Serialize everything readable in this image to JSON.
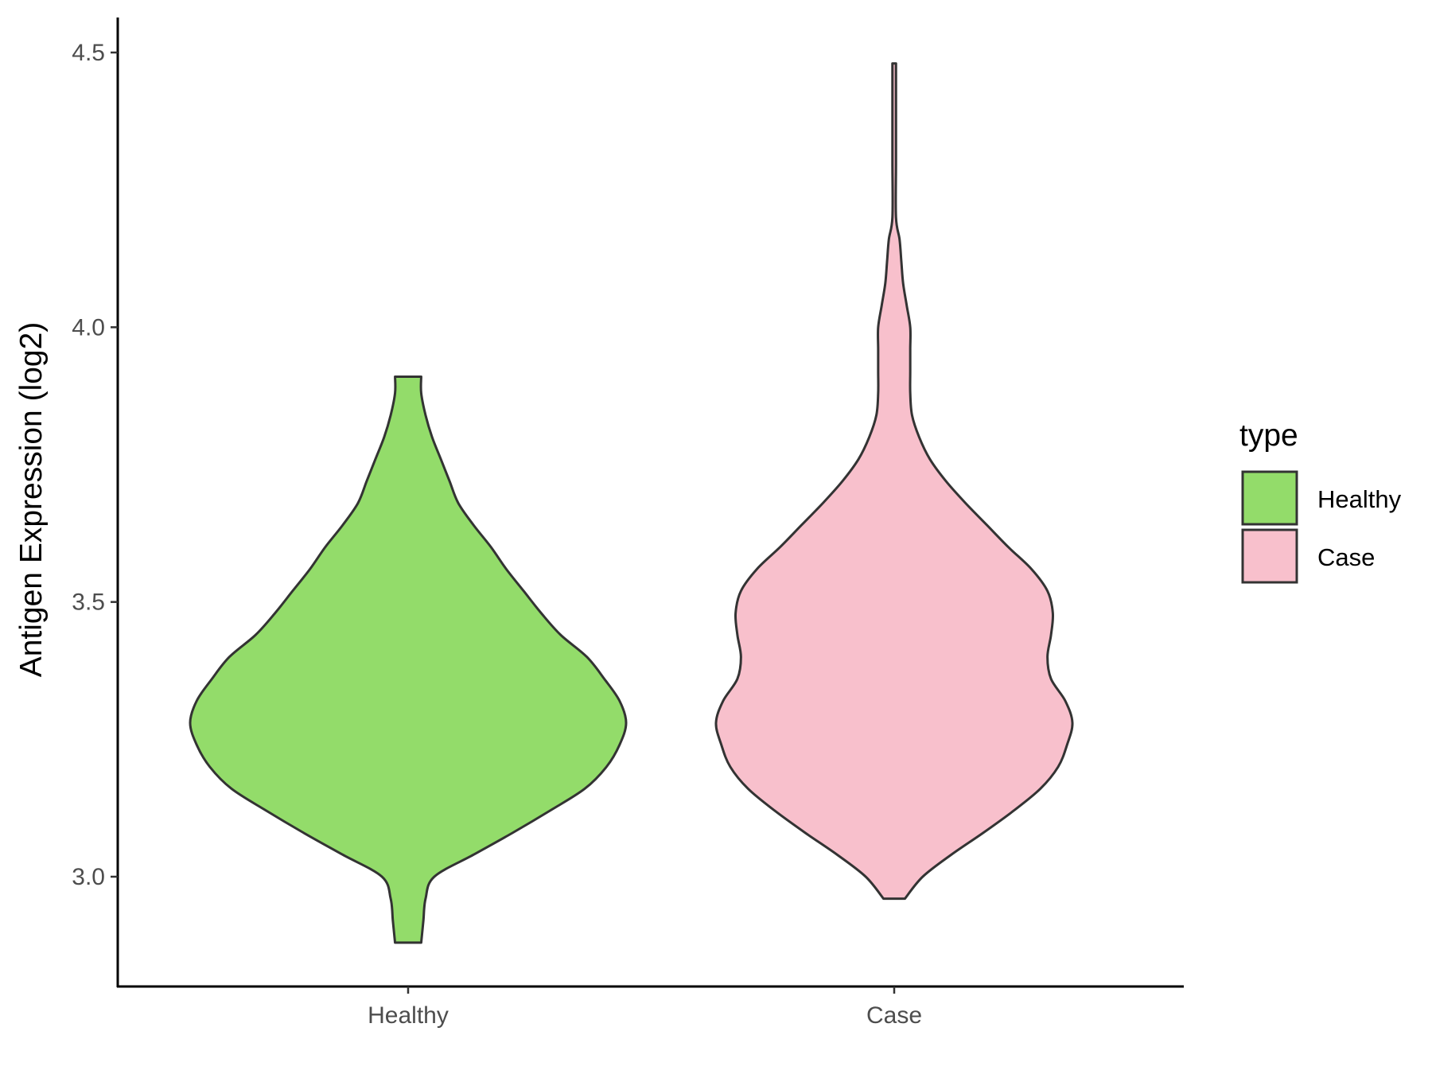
{
  "chart_data": {
    "type": "violin",
    "categories": [
      "Healthy",
      "Case"
    ],
    "xlabel": "",
    "ylabel": "Antigen Expression (log2)",
    "ylim": [
      2.8,
      4.56
    ],
    "yticks": [
      3.0,
      3.5,
      4.0,
      4.5
    ],
    "ytick_labels": [
      "3.0",
      "3.5",
      "4.0",
      "4.5"
    ],
    "grid": false,
    "legend": {
      "title": "type",
      "position": "right",
      "entries": [
        {
          "label": "Healthy",
          "color": "#93dc6a"
        },
        {
          "label": "Case",
          "color": "#f8c0cc"
        }
      ]
    },
    "series": [
      {
        "category": "Healthy",
        "color": "#93dc6a",
        "min": 2.88,
        "max": 3.91,
        "density_profile": [
          [
            2.88,
            0.06
          ],
          [
            2.92,
            0.07
          ],
          [
            2.96,
            0.08
          ],
          [
            3.0,
            0.12
          ],
          [
            3.04,
            0.3
          ],
          [
            3.08,
            0.48
          ],
          [
            3.12,
            0.65
          ],
          [
            3.16,
            0.81
          ],
          [
            3.2,
            0.91
          ],
          [
            3.24,
            0.97
          ],
          [
            3.28,
            1.0
          ],
          [
            3.32,
            0.97
          ],
          [
            3.36,
            0.9
          ],
          [
            3.4,
            0.82
          ],
          [
            3.44,
            0.7
          ],
          [
            3.48,
            0.61
          ],
          [
            3.52,
            0.53
          ],
          [
            3.56,
            0.45
          ],
          [
            3.6,
            0.38
          ],
          [
            3.64,
            0.3
          ],
          [
            3.68,
            0.23
          ],
          [
            3.72,
            0.19
          ],
          [
            3.76,
            0.15
          ],
          [
            3.8,
            0.11
          ],
          [
            3.84,
            0.08
          ],
          [
            3.88,
            0.06
          ],
          [
            3.91,
            0.06
          ]
        ]
      },
      {
        "category": "Case",
        "color": "#f8c0cc",
        "min": 2.96,
        "max": 4.48,
        "density_profile": [
          [
            2.96,
            0.06
          ],
          [
            3.0,
            0.16
          ],
          [
            3.04,
            0.32
          ],
          [
            3.08,
            0.5
          ],
          [
            3.12,
            0.67
          ],
          [
            3.16,
            0.82
          ],
          [
            3.2,
            0.92
          ],
          [
            3.24,
            0.97
          ],
          [
            3.28,
            1.0
          ],
          [
            3.32,
            0.96
          ],
          [
            3.36,
            0.88
          ],
          [
            3.4,
            0.86
          ],
          [
            3.44,
            0.88
          ],
          [
            3.48,
            0.89
          ],
          [
            3.52,
            0.86
          ],
          [
            3.56,
            0.77
          ],
          [
            3.6,
            0.64
          ],
          [
            3.64,
            0.52
          ],
          [
            3.68,
            0.4
          ],
          [
            3.72,
            0.29
          ],
          [
            3.76,
            0.2
          ],
          [
            3.8,
            0.14
          ],
          [
            3.84,
            0.1
          ],
          [
            3.88,
            0.09
          ],
          [
            3.92,
            0.09
          ],
          [
            3.96,
            0.09
          ],
          [
            4.0,
            0.09
          ],
          [
            4.04,
            0.07
          ],
          [
            4.08,
            0.05
          ],
          [
            4.12,
            0.04
          ],
          [
            4.16,
            0.03
          ],
          [
            4.2,
            0.01
          ],
          [
            4.3,
            0.01
          ],
          [
            4.4,
            0.01
          ],
          [
            4.48,
            0.01
          ]
        ]
      }
    ]
  }
}
